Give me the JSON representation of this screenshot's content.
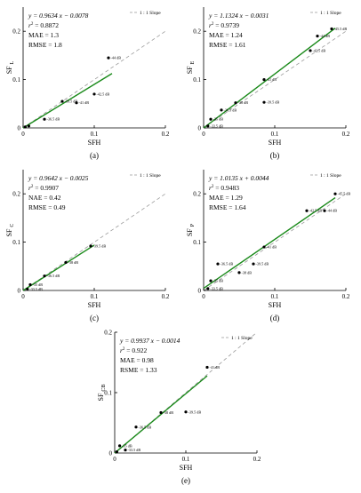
{
  "chart_data": [
    {
      "type": "scatter",
      "panel_label": "(a)",
      "xlabel": "SFH",
      "ylabel": "SF",
      "ylabel_sub": "L",
      "xlim": [
        0,
        0.2
      ],
      "ylim": [
        0,
        0.25
      ],
      "xticks": [
        "0",
        "0.1",
        "0.2"
      ],
      "yticks": [
        "0",
        "0.1",
        "0.2"
      ],
      "reference_line_label": "1 : 1 Slope",
      "equation": "y = 0.9634 x − 0.0078",
      "r2_label": "r",
      "r2_value": "= 0.8872",
      "mae": "MAE = 1.3",
      "err": "RMSE = 1.8",
      "fit": {
        "slope": 0.9634,
        "intercept": -0.0078,
        "x_range": [
          0,
          0.125
        ]
      },
      "points": [
        {
          "x": 0.003,
          "y": 0.002,
          "label": ""
        },
        {
          "x": 0.008,
          "y": 0.004,
          "label": ""
        },
        {
          "x": 0.03,
          "y": 0.018,
          "label": "-36.5 dB"
        },
        {
          "x": 0.055,
          "y": 0.055,
          "label": "-39.5 dB"
        },
        {
          "x": 0.075,
          "y": 0.052,
          "label": "-41 dB"
        },
        {
          "x": 0.1,
          "y": 0.07,
          "label": "-42.5 dB"
        },
        {
          "x": 0.12,
          "y": 0.145,
          "label": "-44 dB"
        }
      ]
    },
    {
      "type": "scatter",
      "panel_label": "(b)",
      "xlabel": "SFH",
      "ylabel": "SF",
      "ylabel_sub": "E",
      "xlim": [
        0,
        0.2
      ],
      "ylim": [
        0,
        0.25
      ],
      "xticks": [
        "0",
        "0.1",
        "0.2"
      ],
      "yticks": [
        "0",
        "0.1",
        "0.2"
      ],
      "reference_line_label": "1 : 1 Slope",
      "equation": "y = 1.1324 x − 0.0031",
      "r2_label": "r",
      "r2_value": "= 0.9739",
      "mae": "MAE = 1.24",
      "err": "RMSE = 1.61",
      "fit": {
        "slope": 1.1324,
        "intercept": -0.0031,
        "x_range": [
          0,
          0.185
        ]
      },
      "points": [
        {
          "x": 0.006,
          "y": 0.004,
          "label": "-33.5 dB"
        },
        {
          "x": 0.01,
          "y": 0.018,
          "label": "-35 dB"
        },
        {
          "x": 0.025,
          "y": 0.037,
          "label": "-36.5 dB"
        },
        {
          "x": 0.045,
          "y": 0.052,
          "label": "-38 dB"
        },
        {
          "x": 0.085,
          "y": 0.053,
          "label": "-39.5 dB"
        },
        {
          "x": 0.085,
          "y": 0.1,
          "label": "-41 dB"
        },
        {
          "x": 0.15,
          "y": 0.16,
          "label": "-42.5 dB"
        },
        {
          "x": 0.16,
          "y": 0.19,
          "label": "-44 dB"
        },
        {
          "x": 0.18,
          "y": 0.205,
          "label": "-45.5 dB"
        }
      ]
    },
    {
      "type": "scatter",
      "panel_label": "(c)",
      "xlabel": "SFH",
      "ylabel": "SF",
      "ylabel_sub": "C",
      "xlim": [
        0,
        0.2
      ],
      "ylim": [
        0,
        0.25
      ],
      "xticks": [
        "0",
        "0.1",
        "0.2"
      ],
      "yticks": [
        "0",
        "0.1",
        "0.2"
      ],
      "reference_line_label": "1 : 1 Slope",
      "equation": "y = 0.9642 x − 0.0025",
      "r2_label": "r",
      "r2_value": "= 0.9907",
      "mae": "NAE = 0.42",
      "err": "RMSE = 0.49",
      "fit": {
        "slope": 0.9642,
        "intercept": -0.0025,
        "x_range": [
          0,
          0.1
        ]
      },
      "points": [
        {
          "x": 0.006,
          "y": 0.003,
          "label": "-33.5 dB"
        },
        {
          "x": 0.01,
          "y": 0.012,
          "label": "-35 dB"
        },
        {
          "x": 0.03,
          "y": 0.03,
          "label": "-36.5 dB"
        },
        {
          "x": 0.06,
          "y": 0.058,
          "label": "-38 dB"
        },
        {
          "x": 0.095,
          "y": 0.092,
          "label": "-39.5 dB"
        }
      ]
    },
    {
      "type": "scatter",
      "panel_label": "(d)",
      "xlabel": "SFH",
      "ylabel": "SF",
      "ylabel_sub": "P",
      "xlim": [
        0,
        0.2
      ],
      "ylim": [
        0,
        0.25
      ],
      "xticks": [
        "0",
        "0.1",
        "0.2"
      ],
      "yticks": [
        "0",
        "0.1",
        "0.2"
      ],
      "reference_line_label": "1 : 1 Slope",
      "equation": "y = 1.0135 x + 0.0044",
      "r2_label": "r",
      "r2_value": "= 0.9483",
      "mae": "MAE = 1.29",
      "err": "RMSE = 1.64",
      "fit": {
        "slope": 1.0135,
        "intercept": 0.0044,
        "x_range": [
          0,
          0.185
        ]
      },
      "points": [
        {
          "x": 0.006,
          "y": 0.004,
          "label": "-33.5 dB"
        },
        {
          "x": 0.01,
          "y": 0.02,
          "label": "-35 dB"
        },
        {
          "x": 0.02,
          "y": 0.055,
          "label": "-36.5 dB"
        },
        {
          "x": 0.05,
          "y": 0.037,
          "label": "-38 dB"
        },
        {
          "x": 0.07,
          "y": 0.055,
          "label": "-39.5 dB"
        },
        {
          "x": 0.085,
          "y": 0.09,
          "label": "-41 dB"
        },
        {
          "x": 0.145,
          "y": 0.165,
          "label": "-42.5 dB"
        },
        {
          "x": 0.17,
          "y": 0.165,
          "label": "-44 dB"
        },
        {
          "x": 0.185,
          "y": 0.2,
          "label": "-45.5 dB"
        }
      ]
    },
    {
      "type": "scatter",
      "panel_label": "(e)",
      "xlabel": "SFH",
      "ylabel": "SF",
      "ylabel_sub": "CB",
      "xlim": [
        0,
        0.2
      ],
      "ylim": [
        0,
        0.2
      ],
      "xticks": [
        "0",
        "0.1",
        "0.2"
      ],
      "yticks": [
        "0",
        "0.1",
        "0.2"
      ],
      "reference_line_label": "1 : 1 Slope",
      "equation": "y = 0.9937 x − 0.0014",
      "r2_label": "r",
      "r2_value": "= 0.922",
      "mae": "MAE = 0.98",
      "err": "RSME = 1.33",
      "fit": {
        "slope": 0.9937,
        "intercept": -0.0014,
        "x_range": [
          0,
          0.13
        ]
      },
      "points": [
        {
          "x": 0.003,
          "y": 0.002,
          "label": ""
        },
        {
          "x": 0.007,
          "y": 0.012,
          "label": "-35 dB"
        },
        {
          "x": 0.015,
          "y": 0.005,
          "label": "-33.5 dB"
        },
        {
          "x": 0.03,
          "y": 0.043,
          "label": "-36.5 dB"
        },
        {
          "x": 0.065,
          "y": 0.067,
          "label": "-38 dB"
        },
        {
          "x": 0.1,
          "y": 0.068,
          "label": "-39.5 dB"
        },
        {
          "x": 0.13,
          "y": 0.142,
          "label": "-41 dB"
        }
      ]
    }
  ]
}
